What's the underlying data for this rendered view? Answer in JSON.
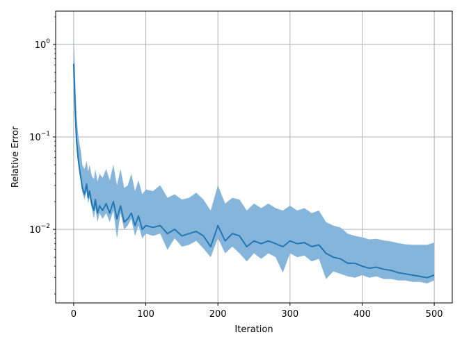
{
  "chart_data": {
    "type": "line",
    "title": "",
    "xlabel": "Iteration",
    "ylabel": "Relative Error",
    "y_scale": "log",
    "grid": true,
    "xlim": [
      -25,
      525
    ],
    "ylim": [
      0.0016,
      2.3
    ],
    "x_ticks": [
      0,
      100,
      200,
      300,
      400,
      500
    ],
    "x_tick_labels": [
      "0",
      "100",
      "200",
      "300",
      "400",
      "500"
    ],
    "y_ticks": [
      1.0,
      0.1,
      0.01
    ],
    "y_tick_labels": [
      {
        "base": "10",
        "exp": "0"
      },
      {
        "base": "10",
        "exp": "−1"
      },
      {
        "base": "10",
        "exp": "−2"
      }
    ],
    "colors": {
      "line": "#1f77b4",
      "band": "#86b5dc",
      "grid": "#b0b0b0",
      "axes": "#000000"
    },
    "series": [
      {
        "role": "mean",
        "x": [
          0,
          2,
          4,
          6,
          8,
          10,
          12,
          15,
          18,
          20,
          22,
          25,
          28,
          30,
          33,
          36,
          40,
          45,
          50,
          55,
          60,
          65,
          70,
          75,
          80,
          85,
          90,
          95,
          100,
          110,
          120,
          130,
          140,
          150,
          160,
          170,
          180,
          190,
          200,
          210,
          220,
          230,
          240,
          250,
          260,
          270,
          280,
          290,
          300,
          310,
          320,
          330,
          340,
          350,
          360,
          370,
          380,
          390,
          400,
          410,
          420,
          430,
          440,
          450,
          460,
          470,
          480,
          490,
          500
        ],
        "y": [
          0.62,
          0.2,
          0.09,
          0.06,
          0.045,
          0.036,
          0.028,
          0.024,
          0.031,
          0.022,
          0.026,
          0.019,
          0.016,
          0.021,
          0.015,
          0.018,
          0.016,
          0.019,
          0.015,
          0.02,
          0.013,
          0.018,
          0.012,
          0.013,
          0.015,
          0.011,
          0.014,
          0.01,
          0.011,
          0.0105,
          0.011,
          0.009,
          0.01,
          0.0085,
          0.009,
          0.0095,
          0.0085,
          0.0065,
          0.011,
          0.0075,
          0.009,
          0.0085,
          0.0065,
          0.0075,
          0.007,
          0.0075,
          0.007,
          0.0065,
          0.0075,
          0.007,
          0.0072,
          0.0065,
          0.0068,
          0.0055,
          0.005,
          0.0048,
          0.0043,
          0.0043,
          0.004,
          0.0038,
          0.0039,
          0.0037,
          0.0036,
          0.0034,
          0.0033,
          0.0032,
          0.0031,
          0.003,
          0.0032
        ]
      },
      {
        "role": "band-upper",
        "x": [
          0,
          2,
          4,
          6,
          8,
          10,
          12,
          15,
          18,
          20,
          22,
          25,
          28,
          30,
          33,
          36,
          40,
          45,
          50,
          55,
          60,
          65,
          70,
          75,
          80,
          85,
          90,
          95,
          100,
          110,
          120,
          130,
          140,
          150,
          160,
          170,
          180,
          190,
          200,
          210,
          220,
          230,
          240,
          250,
          260,
          270,
          280,
          290,
          300,
          310,
          320,
          330,
          340,
          350,
          360,
          370,
          380,
          390,
          400,
          410,
          420,
          430,
          440,
          450,
          460,
          470,
          480,
          490,
          500
        ],
        "y": [
          1.35,
          0.45,
          0.17,
          0.11,
          0.085,
          0.07,
          0.05,
          0.045,
          0.055,
          0.042,
          0.05,
          0.038,
          0.035,
          0.045,
          0.033,
          0.04,
          0.036,
          0.045,
          0.034,
          0.05,
          0.03,
          0.045,
          0.028,
          0.03,
          0.04,
          0.026,
          0.034,
          0.024,
          0.027,
          0.026,
          0.03,
          0.022,
          0.024,
          0.021,
          0.022,
          0.025,
          0.021,
          0.016,
          0.03,
          0.019,
          0.022,
          0.021,
          0.016,
          0.019,
          0.017,
          0.019,
          0.017,
          0.016,
          0.018,
          0.016,
          0.017,
          0.015,
          0.016,
          0.012,
          0.011,
          0.0105,
          0.009,
          0.0085,
          0.0082,
          0.0078,
          0.0079,
          0.0076,
          0.0074,
          0.0071,
          0.0069,
          0.0068,
          0.0068,
          0.0068,
          0.0072
        ]
      },
      {
        "role": "band-lower",
        "x": [
          0,
          2,
          4,
          6,
          8,
          10,
          12,
          15,
          18,
          20,
          22,
          25,
          28,
          30,
          33,
          36,
          40,
          45,
          50,
          55,
          60,
          65,
          70,
          75,
          80,
          85,
          90,
          95,
          100,
          110,
          120,
          130,
          140,
          150,
          160,
          170,
          180,
          190,
          200,
          210,
          220,
          230,
          240,
          250,
          260,
          270,
          280,
          290,
          300,
          310,
          320,
          330,
          340,
          350,
          360,
          370,
          380,
          390,
          400,
          410,
          420,
          430,
          440,
          450,
          460,
          470,
          480,
          490,
          500
        ],
        "y": [
          0.55,
          0.18,
          0.08,
          0.055,
          0.04,
          0.032,
          0.025,
          0.021,
          0.026,
          0.019,
          0.022,
          0.017,
          0.013,
          0.017,
          0.012,
          0.015,
          0.013,
          0.015,
          0.012,
          0.016,
          0.008,
          0.015,
          0.01,
          0.011,
          0.013,
          0.0085,
          0.011,
          0.008,
          0.009,
          0.0085,
          0.009,
          0.006,
          0.008,
          0.0065,
          0.0068,
          0.0075,
          0.0062,
          0.005,
          0.008,
          0.0055,
          0.0065,
          0.0055,
          0.0045,
          0.0055,
          0.0048,
          0.0055,
          0.005,
          0.0034,
          0.0055,
          0.005,
          0.0052,
          0.0045,
          0.0048,
          0.0029,
          0.0035,
          0.0033,
          0.0031,
          0.003,
          0.0032,
          0.003,
          0.0031,
          0.0029,
          0.0029,
          0.0028,
          0.0028,
          0.0027,
          0.0027,
          0.0026,
          0.0028
        ]
      }
    ]
  }
}
